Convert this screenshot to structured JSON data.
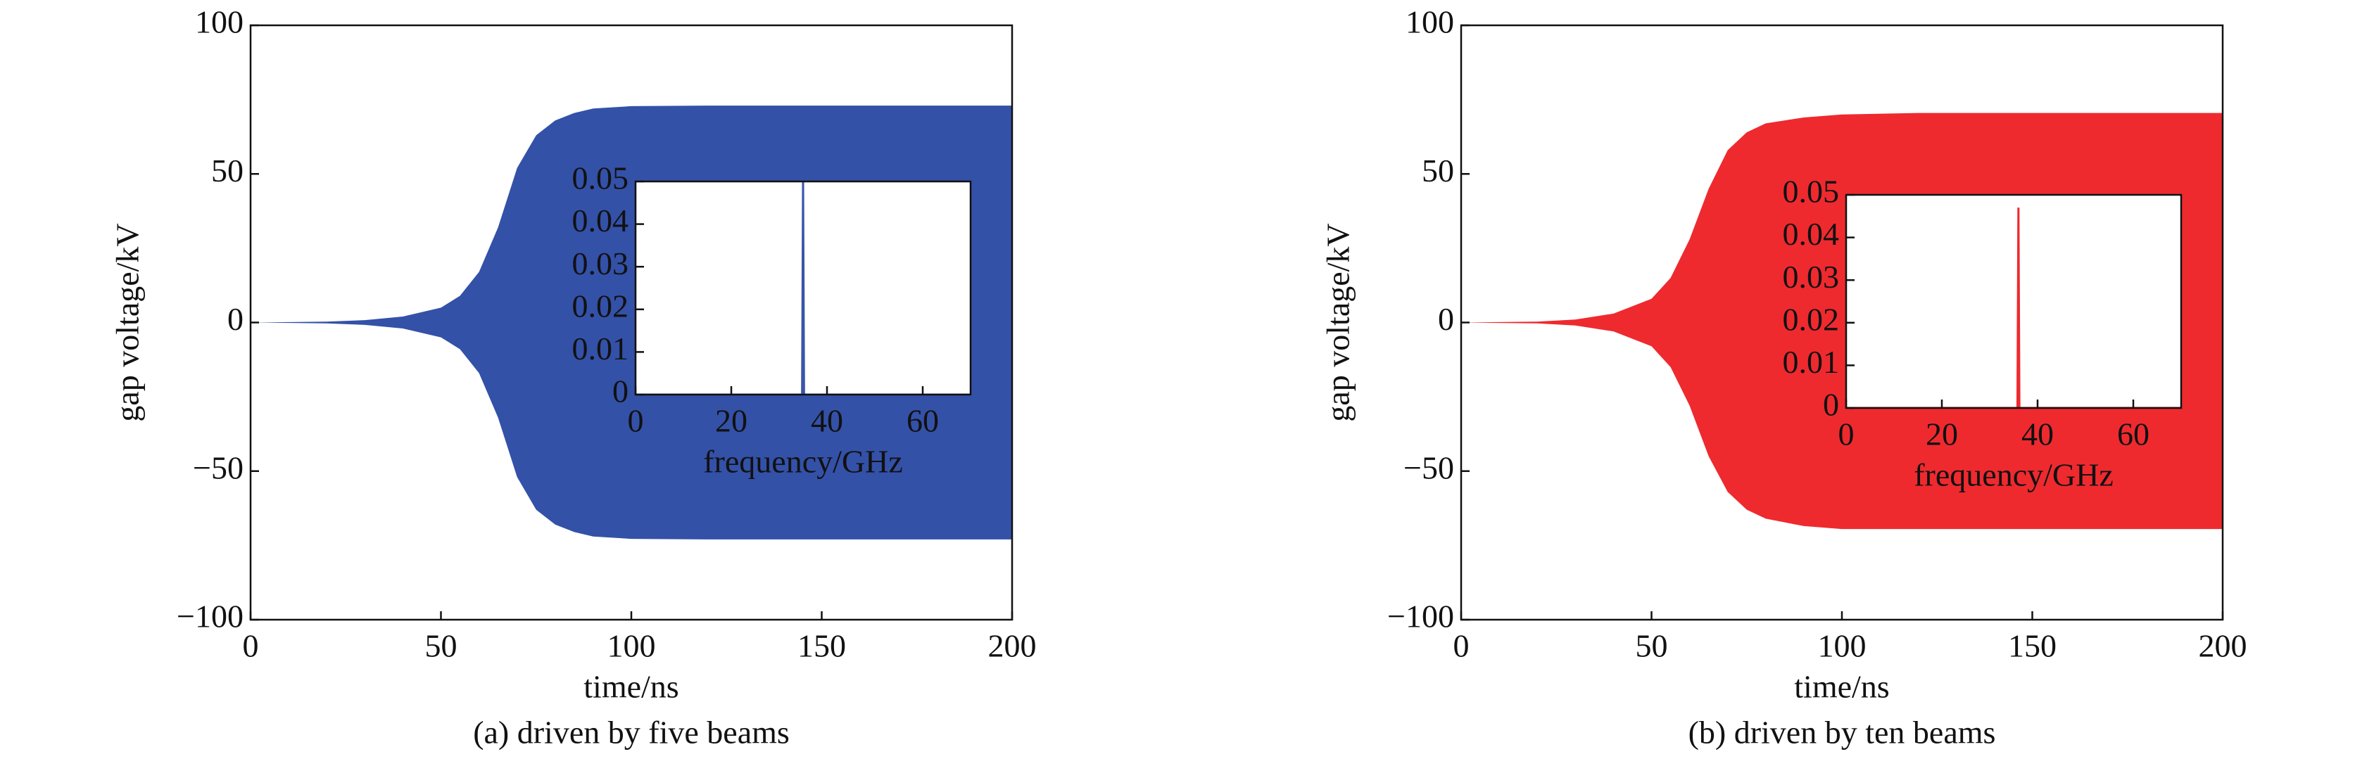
{
  "chart_data": [
    {
      "type": "area",
      "caption": "(a) driven by five beams",
      "xlabel": "time/ns",
      "ylabel": "gap voltage/kV",
      "color": "#3451a8",
      "x": [
        0,
        20,
        30,
        40,
        50,
        55,
        60,
        65,
        70,
        75,
        80,
        85,
        90,
        100,
        120,
        150,
        200
      ],
      "upper": [
        0,
        0.3,
        0.8,
        2,
        5,
        9,
        17,
        32,
        52,
        63,
        68,
        70.5,
        72,
        72.8,
        73,
        73,
        73
      ],
      "lower": [
        0,
        -0.3,
        -0.8,
        -2,
        -5,
        -9,
        -17,
        -32,
        -52,
        -63,
        -68,
        -70.5,
        -72,
        -72.8,
        -73,
        -73,
        -73
      ],
      "xlim": [
        0,
        200
      ],
      "ylim": [
        -100,
        100
      ],
      "xticks": [
        0,
        50,
        100,
        150,
        200
      ],
      "yticks": [
        {
          "value": -100,
          "label": "−100"
        },
        {
          "value": -50,
          "label": "−50"
        },
        0,
        50,
        100
      ],
      "inset": {
        "type": "line",
        "xlabel": "frequency/GHz",
        "color": "#3a55a8",
        "x": [
          0,
          34.8,
          35,
          35.2,
          70
        ],
        "values": [
          0,
          0,
          0.05,
          0,
          0
        ],
        "xlim": [
          0,
          70
        ],
        "ylim": [
          0,
          0.05
        ],
        "xticks": [
          0,
          20,
          40,
          60
        ],
        "yticks": [
          0,
          0.01,
          0.02,
          0.03,
          0.04,
          0.05
        ]
      }
    },
    {
      "type": "area",
      "caption": "(b) driven by ten beams",
      "xlabel": "time/ns",
      "ylabel": "gap voltage/kV",
      "color": "#ee2a2f",
      "x": [
        0,
        20,
        30,
        40,
        50,
        55,
        60,
        65,
        70,
        75,
        80,
        90,
        100,
        120,
        150,
        200
      ],
      "upper": [
        0,
        0.3,
        1,
        3,
        8,
        15,
        28,
        45,
        58,
        64,
        67,
        69,
        70,
        70.5,
        70.5,
        70.5
      ],
      "lower": [
        0,
        -0.3,
        -1,
        -3,
        -8,
        -15,
        -28,
        -45,
        -57,
        -63,
        -66,
        -68.5,
        -69.5,
        -69.5,
        -69.5,
        -69.5
      ],
      "xlim": [
        0,
        200
      ],
      "ylim": [
        -100,
        100
      ],
      "xticks": [
        0,
        50,
        100,
        150,
        200
      ],
      "yticks": [
        {
          "value": -100,
          "label": "−100"
        },
        {
          "value": -50,
          "label": "−50"
        },
        0,
        50,
        100
      ],
      "inset": {
        "type": "line",
        "xlabel": "frequency/GHz",
        "color": "#ee2a2f",
        "x": [
          0,
          35.8,
          36,
          36.2,
          70
        ],
        "values": [
          0,
          0,
          0.047,
          0,
          0
        ],
        "xlim": [
          0,
          70
        ],
        "ylim": [
          0,
          0.05
        ],
        "xticks": [
          0,
          20,
          40,
          60
        ],
        "yticks": [
          0,
          0.01,
          0.02,
          0.03,
          0.04,
          0.05
        ]
      }
    }
  ]
}
